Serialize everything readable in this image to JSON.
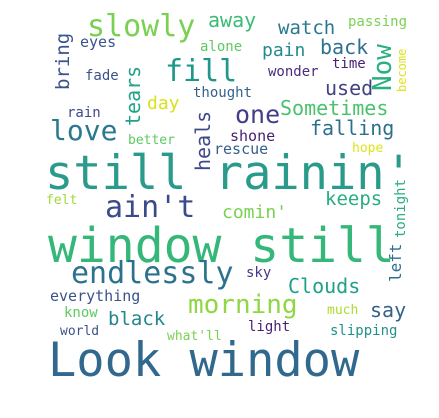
{
  "words": [
    {
      "text": "Look window",
      "color": "#31688e"
    },
    {
      "text": "window still",
      "color": "#35b779"
    },
    {
      "text": "still rainin'",
      "color": "#2a9a8a"
    },
    {
      "text": "endlessly",
      "color": "#2c728e"
    },
    {
      "text": "ain't",
      "color": "#3b4a8a"
    },
    {
      "text": "morning",
      "color": "#8fd744"
    },
    {
      "text": "slowly",
      "color": "#7ad151"
    },
    {
      "text": "fill",
      "color": "#1f988b"
    },
    {
      "text": "love",
      "color": "#2a788e"
    },
    {
      "text": "one",
      "color": "#433e85"
    },
    {
      "text": "Now",
      "color": "#2ab07f"
    },
    {
      "text": "tears",
      "color": "#20a386"
    },
    {
      "text": "heals",
      "color": "#3e4989"
    },
    {
      "text": "falling",
      "color": "#2d708e"
    },
    {
      "text": "Sometimes",
      "color": "#4ac16d"
    },
    {
      "text": "used",
      "color": "#424086"
    },
    {
      "text": "back",
      "color": "#2d718e"
    },
    {
      "text": "pain",
      "color": "#238a8d"
    },
    {
      "text": "watch",
      "color": "#2a788e"
    },
    {
      "text": "away",
      "color": "#3bbb75"
    },
    {
      "text": "bring",
      "color": "#3a538b"
    },
    {
      "text": "eyes",
      "color": "#3b528b"
    },
    {
      "text": "fade",
      "color": "#3b528b"
    },
    {
      "text": "alone",
      "color": "#5ec962"
    },
    {
      "text": "wonder",
      "color": "#472d7b"
    },
    {
      "text": "time",
      "color": "#482374"
    },
    {
      "text": "passing",
      "color": "#7ad151"
    },
    {
      "text": "become",
      "color": "#dde318"
    },
    {
      "text": "day",
      "color": "#d8e219"
    },
    {
      "text": "thought",
      "color": "#33638d"
    },
    {
      "text": "rain",
      "color": "#3e4a89"
    },
    {
      "text": "better",
      "color": "#5ec962"
    },
    {
      "text": "shone",
      "color": "#481f70"
    },
    {
      "text": "rescue",
      "color": "#355f8d"
    },
    {
      "text": "hope",
      "color": "#dde318"
    },
    {
      "text": "felt",
      "color": "#a0da39"
    },
    {
      "text": "tonight",
      "color": "#2ab07f"
    },
    {
      "text": "comin'",
      "color": "#7ad151"
    },
    {
      "text": "keeps",
      "color": "#27ad81"
    },
    {
      "text": "left",
      "color": "#2e6f8e"
    },
    {
      "text": "sky",
      "color": "#443983"
    },
    {
      "text": "Clouds",
      "color": "#1fa088"
    },
    {
      "text": "everything",
      "color": "#3b528b"
    },
    {
      "text": "know",
      "color": "#5ec962"
    },
    {
      "text": "black",
      "color": "#24868e"
    },
    {
      "text": "much",
      "color": "#addc30"
    },
    {
      "text": "say",
      "color": "#34608d"
    },
    {
      "text": "world",
      "color": "#3b528b"
    },
    {
      "text": "what'll",
      "color": "#7ad151"
    },
    {
      "text": "light",
      "color": "#481f70"
    },
    {
      "text": "slipping",
      "color": "#21918c"
    }
  ]
}
